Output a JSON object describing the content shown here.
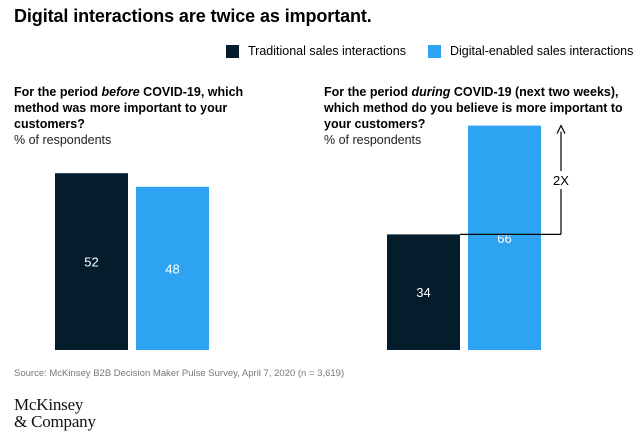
{
  "title": "Digital interactions are twice as important.",
  "legend": [
    {
      "label": "Traditional sales interactions",
      "color": "#051c2c"
    },
    {
      "label": "Digital-enabled sales interactions",
      "color": "#2ea3f2"
    }
  ],
  "panels": {
    "left": {
      "question_pre": "For the period ",
      "question_em": "before",
      "question_post": " COVID-19, which method was more important to your customers?",
      "subtitle": "% of respondents"
    },
    "right": {
      "question_pre": "For the period ",
      "question_em": "during",
      "question_post": " COVID-19 (next two weeks), which method do you believe is more important to your customers?",
      "subtitle": "% of respondents"
    }
  },
  "chart_data": [
    {
      "type": "bar",
      "categories": [
        "Traditional sales interactions",
        "Digital-enabled sales interactions"
      ],
      "values": [
        52,
        48
      ],
      "colors": [
        "#051c2c",
        "#2ea3f2"
      ],
      "title": "For the period before COVID-19, which method was more important to your customers?",
      "ylabel": "% of respondents",
      "ylim": [
        0,
        100
      ],
      "grid": false
    },
    {
      "type": "bar",
      "categories": [
        "Traditional sales interactions",
        "Digital-enabled sales interactions"
      ],
      "values": [
        34,
        66
      ],
      "colors": [
        "#051c2c",
        "#2ea3f2"
      ],
      "title": "For the period during COVID-19 (next two weeks), which method do you believe is more important to your customers?",
      "ylabel": "% of respondents",
      "ylim": [
        0,
        100
      ],
      "grid": false,
      "annotation": "2X"
    }
  ],
  "source": "Source: McKinsey B2B Decision Maker Pulse Survey, April 7, 2020 (n = 3,619)",
  "logo": {
    "line1": "McKinsey",
    "line2": "& Company"
  }
}
